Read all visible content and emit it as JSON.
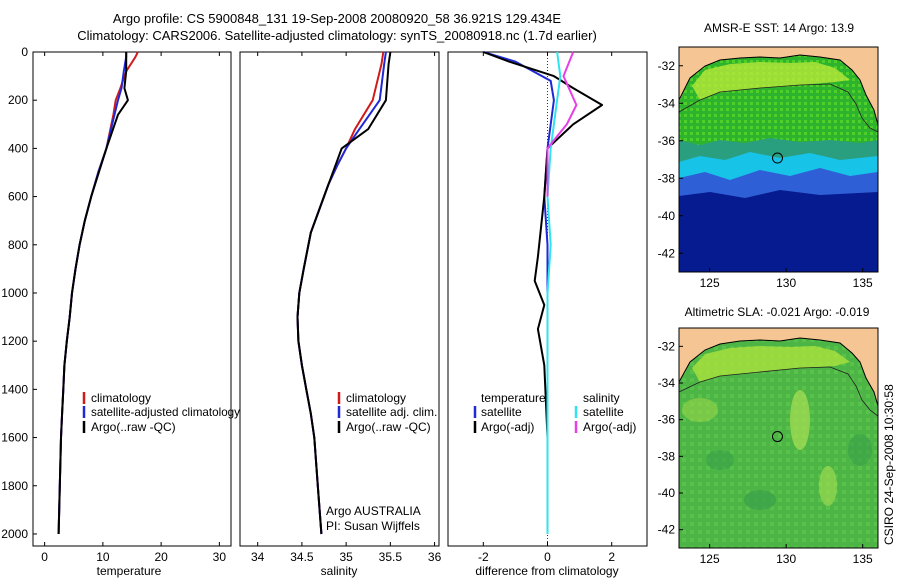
{
  "header": {
    "line1": "Argo profile: CS 5900848_131 19-Sep-2008 20080920_58 36.921S 129.434E",
    "line2": "Climatology: CARS2006. Satellite-adjusted climatology: synTS_20080918.nc (1.7d earlier)"
  },
  "side_text": "CSIRO 24-Sep-2008 10:30:58",
  "colors": {
    "climatology": "#d11a1a",
    "satellite": "#1f2ad6",
    "argo": "#000000",
    "sat_diff": "#2fe3ef",
    "argo_adj": "#e83ee8",
    "land": "#f6c594"
  },
  "chart_data": [
    {
      "id": "temperature",
      "type": "line",
      "xlabel": "temperature",
      "ylabel": "",
      "xlim": [
        -2,
        32
      ],
      "ylim": [
        2050,
        0
      ],
      "xticks": [
        0,
        10,
        20,
        30
      ],
      "yticks": [
        0,
        200,
        400,
        600,
        800,
        1000,
        1200,
        1400,
        1600,
        1800,
        2000
      ],
      "legend": {
        "placement": "middle-right",
        "entries": [
          "climatology",
          "satellite-adjusted climatology",
          "Argo(..raw -QC)"
        ]
      },
      "series": [
        {
          "name": "climatology",
          "color_key": "climatology",
          "x": [
            16.0,
            15.6,
            14.0,
            13.0,
            12.2,
            11.8,
            10.6,
            9.2,
            8.0,
            6.9,
            6.0,
            5.3,
            4.7,
            4.3,
            3.8,
            3.4,
            3.2,
            3.0,
            2.8,
            2.6,
            2.4
          ],
          "y": [
            0,
            20,
            80,
            150,
            200,
            260,
            400,
            500,
            600,
            700,
            800,
            900,
            1000,
            1100,
            1200,
            1300,
            1400,
            1500,
            1600,
            1800,
            2000
          ]
        },
        {
          "name": "satellite-adjusted climatology",
          "color_key": "satellite",
          "x": [
            14.0,
            14.0,
            13.6,
            13.2,
            12.6,
            12.0,
            10.6,
            9.2,
            8.0,
            6.9,
            6.0,
            5.3,
            4.7,
            4.3,
            3.8,
            3.4,
            3.2,
            3.0,
            2.8,
            2.6,
            2.4
          ],
          "y": [
            0,
            20,
            80,
            150,
            200,
            260,
            400,
            500,
            600,
            700,
            800,
            900,
            1000,
            1100,
            1200,
            1300,
            1400,
            1500,
            1600,
            1800,
            2000
          ]
        },
        {
          "name": "Argo(..raw -QC)",
          "color_key": "argo",
          "x": [
            14.0,
            14.0,
            14.0,
            13.7,
            14.3,
            12.6,
            10.6,
            9.3,
            8.0,
            6.9,
            6.0,
            5.3,
            4.7,
            4.3,
            3.8,
            3.4,
            3.2,
            3.0,
            2.8,
            2.6,
            2.4
          ],
          "y": [
            0,
            20,
            80,
            150,
            200,
            260,
            400,
            500,
            600,
            700,
            800,
            900,
            1000,
            1100,
            1200,
            1300,
            1400,
            1500,
            1600,
            1800,
            2000
          ]
        }
      ]
    },
    {
      "id": "salinity",
      "type": "line",
      "xlabel": "salinity",
      "ylabel": "",
      "xlim": [
        33.8,
        36.05
      ],
      "ylim": [
        2050,
        0
      ],
      "xticks": [
        34,
        34.5,
        35,
        35.5,
        36
      ],
      "yticks": [],
      "legend": {
        "placement": "middle-right",
        "entries": [
          "climatology",
          "satellite adj. clim.",
          "Argo(..raw -QC)"
        ]
      },
      "notes": [
        "Argo AUSTRALIA",
        "PI: Susan Wijffels"
      ],
      "series": [
        {
          "name": "climatology",
          "color_key": "climatology",
          "x": [
            35.42,
            35.4,
            35.3,
            35.1,
            35.0,
            34.9,
            34.8,
            34.7,
            34.6,
            34.52,
            34.47,
            34.45,
            34.46,
            34.5,
            34.55,
            34.6,
            34.64,
            34.68,
            34.72
          ],
          "y": [
            0,
            50,
            200,
            320,
            400,
            470,
            550,
            650,
            750,
            900,
            1000,
            1100,
            1200,
            1300,
            1400,
            1500,
            1600,
            1800,
            2000
          ]
        },
        {
          "name": "satellite adj. clim.",
          "color_key": "satellite",
          "x": [
            35.45,
            35.43,
            35.38,
            35.15,
            35.0,
            34.9,
            34.8,
            34.7,
            34.6,
            34.52,
            34.47,
            34.45,
            34.46,
            34.5,
            34.55,
            34.6,
            34.64,
            34.68,
            34.72
          ],
          "y": [
            0,
            50,
            200,
            320,
            400,
            470,
            550,
            650,
            750,
            900,
            1000,
            1100,
            1200,
            1300,
            1400,
            1500,
            1600,
            1800,
            2000
          ]
        },
        {
          "name": "Argo(..raw -QC)",
          "color_key": "argo",
          "x": [
            35.5,
            35.48,
            35.45,
            35.25,
            34.95,
            34.88,
            34.8,
            34.7,
            34.6,
            34.52,
            34.47,
            34.45,
            34.46,
            34.5,
            34.55,
            34.6,
            34.64,
            34.68,
            34.72
          ],
          "y": [
            0,
            50,
            200,
            320,
            400,
            470,
            550,
            650,
            750,
            900,
            1000,
            1100,
            1200,
            1300,
            1400,
            1500,
            1600,
            1800,
            2000
          ]
        }
      ]
    },
    {
      "id": "difference",
      "type": "line",
      "xlabel": "difference from climatology",
      "ylabel": "",
      "xlim": [
        -3.1,
        3.1
      ],
      "ylim": [
        2050,
        0
      ],
      "xticks": [
        -2,
        0,
        2
      ],
      "yticks": [],
      "legend": {
        "placement": "middle",
        "headers": [
          "temperature",
          "salinity"
        ],
        "entries": [
          "satellite",
          "Argo(-adj)",
          "satellite",
          "Argo(-adj)"
        ]
      },
      "series": [
        {
          "name": "temperature satellite",
          "color_key": "satellite",
          "x": [
            -2.0,
            -1.0,
            0.1,
            0.2,
            0.1,
            0.0,
            -0.1,
            0.0,
            0.0,
            0.0,
            0.0,
            0.0
          ],
          "y": [
            0,
            40,
            120,
            200,
            300,
            400,
            600,
            800,
            1000,
            1200,
            1600,
            2000
          ]
        },
        {
          "name": "temperature Argo(-adj)",
          "color_key": "argo",
          "x": [
            -2.0,
            -1.2,
            0.2,
            0.8,
            1.7,
            0.8,
            0.0,
            -0.1,
            -0.3,
            -0.4,
            -0.1,
            -0.3,
            -0.1,
            0.0,
            0.0
          ],
          "y": [
            0,
            40,
            100,
            150,
            220,
            300,
            400,
            600,
            850,
            950,
            1050,
            1150,
            1300,
            1600,
            2000
          ]
        },
        {
          "name": "salinity satellite",
          "color_key": "sat_diff",
          "x": [
            0.3,
            0.4,
            0.3,
            0.2,
            0.1,
            0.0,
            0.1,
            0.0,
            0.0,
            0.0,
            0.0
          ],
          "y": [
            0,
            100,
            200,
            300,
            400,
            600,
            800,
            1000,
            1200,
            1600,
            2000
          ]
        },
        {
          "name": "salinity Argo(-adj)",
          "color_key": "argo_adj",
          "x": [
            0.8,
            0.5,
            0.9,
            0.6,
            0.3,
            0.0,
            0.0
          ],
          "y": [
            0,
            100,
            220,
            300,
            350,
            400,
            600
          ]
        }
      ]
    },
    {
      "id": "sst_map",
      "type": "heatmap",
      "title": "AMSR-E SST: 14 Argo: 13.9",
      "xlim": [
        123,
        136
      ],
      "ylim": [
        -43,
        -31
      ],
      "xticks": [
        125,
        130,
        135
      ],
      "yticks": [
        -32,
        -34,
        -36,
        -38,
        -40,
        -42
      ],
      "argo_position": {
        "lon": 129.434,
        "lat": -36.921
      }
    },
    {
      "id": "sla_map",
      "type": "heatmap",
      "title": "Altimetric SLA: -0.021 Argo: -0.019",
      "xlim": [
        123,
        136
      ],
      "ylim": [
        -43,
        -31
      ],
      "xticks": [
        125,
        130,
        135
      ],
      "yticks": [
        -32,
        -34,
        -36,
        -38,
        -40,
        -42
      ],
      "argo_position": {
        "lon": 129.434,
        "lat": -36.921
      }
    }
  ]
}
